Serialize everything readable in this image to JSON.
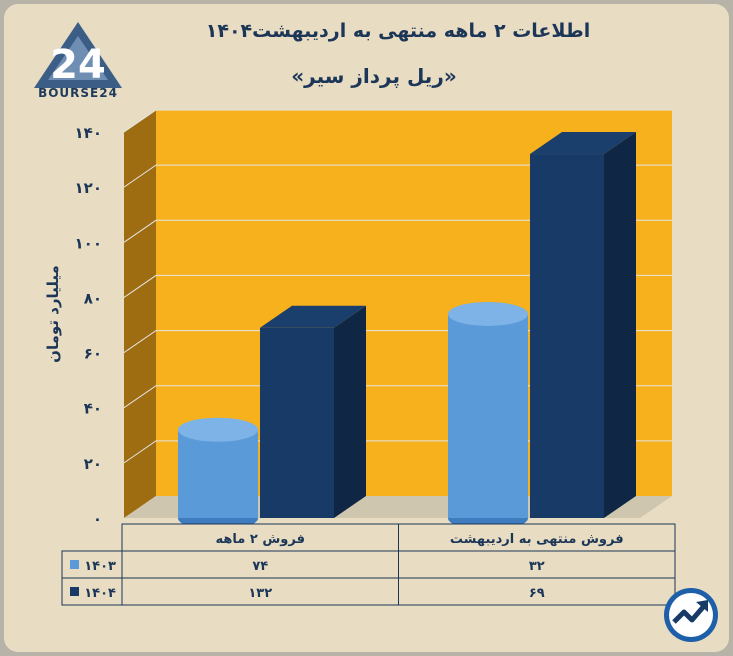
{
  "header": {
    "title": "اطلاعات ۲ ماهه منتهی به اردیبهشت۱۴۰۴",
    "subtitle": "«ریل پرداز سیر»",
    "logo_text": "BOURSE24",
    "logo_mark": "24"
  },
  "chart_data": {
    "type": "bar",
    "ylabel": "میلیارد تومان",
    "ylim": [
      0,
      140
    ],
    "y_ticks": [
      {
        "value": 0,
        "label": "۰"
      },
      {
        "value": 20,
        "label": "۲۰"
      },
      {
        "value": 40,
        "label": "۴۰"
      },
      {
        "value": 60,
        "label": "۶۰"
      },
      {
        "value": 80,
        "label": "۸۰"
      },
      {
        "value": 100,
        "label": "۱۰۰"
      },
      {
        "value": 120,
        "label": "۱۲۰"
      },
      {
        "value": 140,
        "label": "۱۴۰"
      }
    ],
    "grid": true,
    "categories": [
      "فروش منتهی به  اردیبهشت",
      "فروش ۲  ماهه"
    ],
    "series": [
      {
        "name": "۱۴۰۳",
        "color": "#5a9ad8",
        "shape": "cylinder",
        "values": [
          32,
          74
        ],
        "labels": [
          "۳۲",
          "۷۴"
        ]
      },
      {
        "name": "۱۴۰۴",
        "color": "#173a66",
        "shape": "box",
        "values": [
          69,
          132
        ],
        "labels": [
          "۶۹",
          "۱۳۲"
        ]
      }
    ]
  },
  "colors": {
    "plot_background": "#f7b11c",
    "side_wall": "#9e6d12",
    "grid": "#e5e5e5"
  },
  "icons": {
    "logo": "bourse24-triangle-logo",
    "badge": "trend-arrow-badge-icon"
  }
}
